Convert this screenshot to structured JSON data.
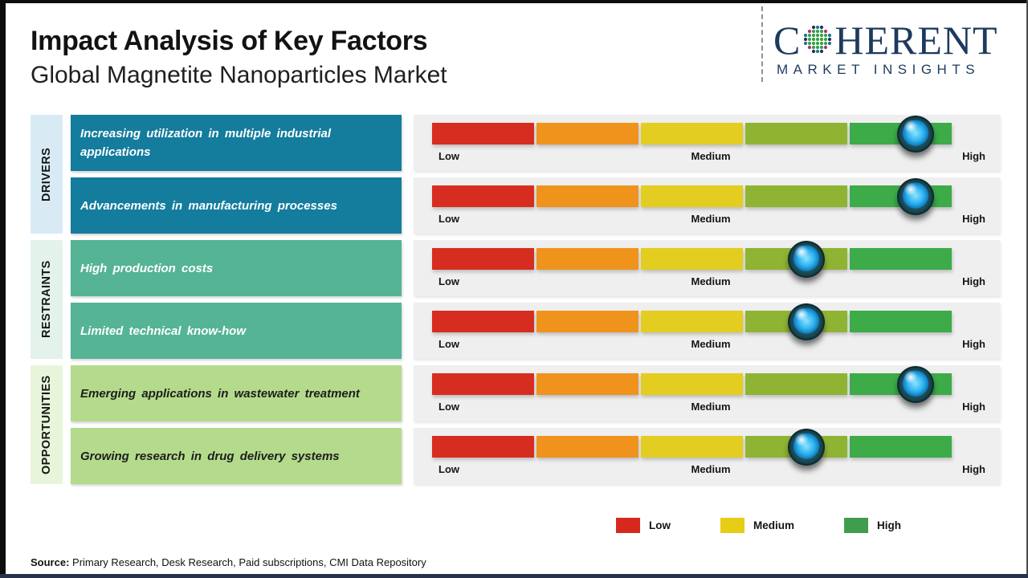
{
  "header": {
    "title": "Impact Analysis of Key Factors",
    "subtitle": "Global Magnetite Nanoparticles Market"
  },
  "logo": {
    "brand_prefix": "C",
    "brand_suffix": "HERENT",
    "tagline": "MARKET INSIGHTS",
    "navy": "#1d3a5e",
    "globe_icon": "coherent-dotted-globe-icon"
  },
  "scale": {
    "labels": {
      "low": "Low",
      "medium": "Medium",
      "high": "High"
    },
    "segment_colors": [
      "#d72d20",
      "#ef931d",
      "#e3cd20",
      "#8fb433",
      "#3cab48"
    ]
  },
  "groups": [
    {
      "name": "DRIVERS",
      "label_bg": "#d8ebf5",
      "box_bg": "#147c9d",
      "box_text": "#ffffff",
      "factors": [
        {
          "text": "Increasing utilization in multiple industrial applications",
          "impact_pct": 93,
          "impact_level": "High"
        },
        {
          "text": "Advancements in manufacturing processes",
          "impact_pct": 93,
          "impact_level": "High"
        }
      ]
    },
    {
      "name": "RESTRAINTS",
      "label_bg": "#e3f2eb",
      "box_bg": "#55b495",
      "box_text": "#ffffff",
      "factors": [
        {
          "text": "High production costs",
          "impact_pct": 72,
          "impact_level": "Medium-High"
        },
        {
          "text": "Limited technical know-how",
          "impact_pct": 72,
          "impact_level": "Medium-High"
        }
      ]
    },
    {
      "name": "OPPORTUNITIES",
      "label_bg": "#e8f5da",
      "box_bg": "#b4db8c",
      "box_text": "#1d1d1d",
      "factors": [
        {
          "text": "Emerging applications in wastewater treatment",
          "impact_pct": 93,
          "impact_level": "High"
        },
        {
          "text": "Growing research in drug delivery systems",
          "impact_pct": 72,
          "impact_level": "Medium-High"
        }
      ]
    }
  ],
  "legend": [
    {
      "label": "Low",
      "color": "#d7281e"
    },
    {
      "label": "Medium",
      "color": "#e7cd15"
    },
    {
      "label": "High",
      "color": "#3f9e4d"
    }
  ],
  "source": {
    "prefix": "Source:",
    "text": " Primary Research, Desk Research, Paid subscriptions, CMI Data Repository"
  },
  "chart_data": {
    "type": "table",
    "title": "Impact Analysis of Key Factors",
    "subtitle": "Global Magnetite Nanoparticles Market",
    "scale": {
      "range": [
        0,
        100
      ],
      "tick_labels": [
        "Low",
        "Medium",
        "High"
      ],
      "segments": [
        "red",
        "orange",
        "yellow",
        "yellow-green",
        "green"
      ]
    },
    "legend": [
      "Low",
      "Medium",
      "High"
    ],
    "rows": [
      {
        "category": "Drivers",
        "factor": "Increasing utilization in multiple industrial applications",
        "impact_position_pct": 93,
        "impact": "High"
      },
      {
        "category": "Drivers",
        "factor": "Advancements in manufacturing processes",
        "impact_position_pct": 93,
        "impact": "High"
      },
      {
        "category": "Restraints",
        "factor": "High production costs",
        "impact_position_pct": 72,
        "impact": "Medium-High"
      },
      {
        "category": "Restraints",
        "factor": "Limited technical know-how",
        "impact_position_pct": 72,
        "impact": "Medium-High"
      },
      {
        "category": "Opportunities",
        "factor": "Emerging applications in wastewater treatment",
        "impact_position_pct": 93,
        "impact": "High"
      },
      {
        "category": "Opportunities",
        "factor": "Growing research in drug delivery systems",
        "impact_position_pct": 72,
        "impact": "Medium-High"
      }
    ]
  }
}
